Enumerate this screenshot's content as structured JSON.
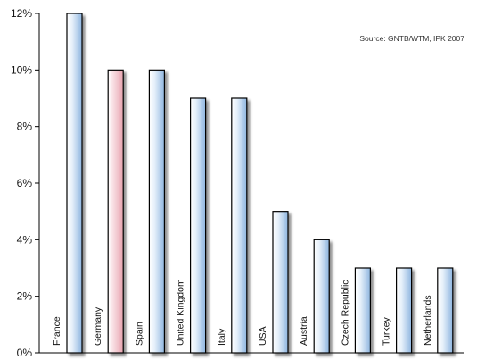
{
  "chart_data": {
    "type": "bar",
    "source_note": "Source: GNTB/WTM, IPK 2007",
    "categories": [
      "France",
      "Germany",
      "Spain",
      "United Kingdom",
      "Italy",
      "USA",
      "Austria",
      "Czech Republic",
      "Turkey",
      "Netherlands"
    ],
    "values": [
      12,
      10,
      10,
      9,
      9,
      5,
      4,
      3,
      3,
      3
    ],
    "highlight": "Germany",
    "y_ticks": [
      "0%",
      "2%",
      "4%",
      "6%",
      "8%",
      "10%",
      "12%"
    ],
    "ylim": [
      0,
      12
    ],
    "unit": "%",
    "grid": false,
    "legend": "none",
    "colors": {
      "bar_fill_light": "#ffffff",
      "bar_fill_dark": "#8fb6e0",
      "highlight_fill_light": "#ffffff",
      "highlight_fill_dark": "#e8a4b0",
      "axis": "#000000",
      "shadow": "#9a9a9a"
    }
  }
}
